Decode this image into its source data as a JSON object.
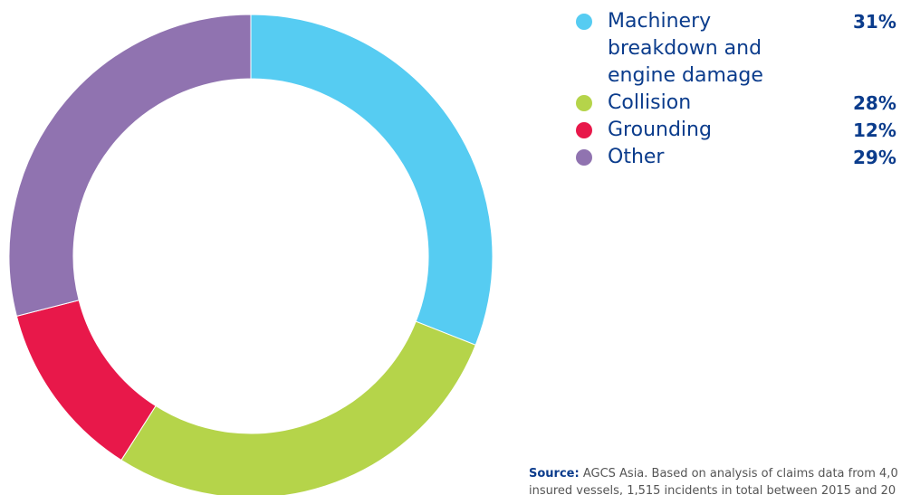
{
  "chart_data": {
    "type": "pie",
    "variant": "donut",
    "categories": [
      "Machinery breakdown and engine damage",
      "Collision",
      "Grounding",
      "Other"
    ],
    "values": [
      31,
      28,
      12,
      29
    ],
    "value_labels": [
      "31%",
      "28%",
      "12%",
      "29%"
    ],
    "colors": [
      "#56ccf2",
      "#b5d44a",
      "#e8184a",
      "#9073b0"
    ],
    "legend_position": "top-right"
  },
  "source": {
    "label": "Source:",
    "text": "AGCS Asia. Based on analysis of claims data from 4,0",
    "text_line2": "insured vessels, 1,515 incidents in total between 2015 and 20"
  }
}
